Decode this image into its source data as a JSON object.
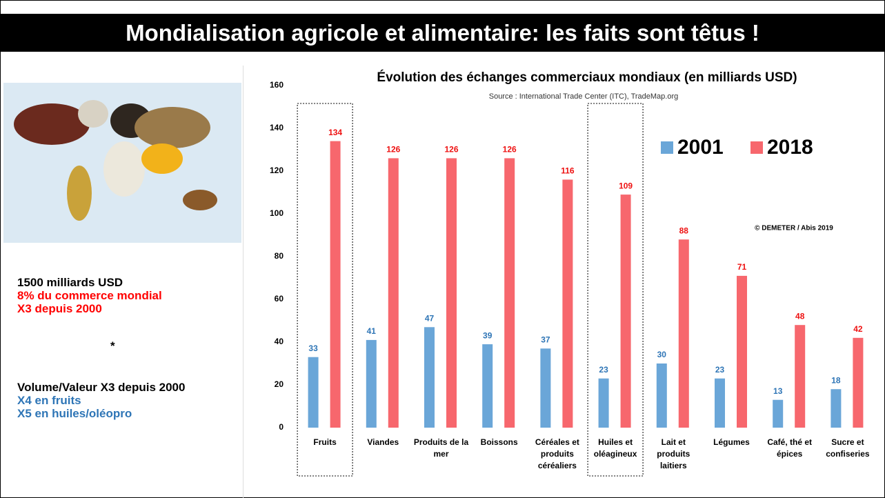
{
  "header": {
    "title": "Mondialisation agricole et alimentaire: les faits sont têtus !"
  },
  "notes": {
    "block1": [
      {
        "text": "1500 milliards USD",
        "color": "#000000"
      },
      {
        "text": "8% du commerce mondial",
        "color": "#ff0000"
      },
      {
        "text": "X3 depuis 2000",
        "color": "#ff0000"
      }
    ],
    "separator": "*",
    "block2": [
      {
        "text": "Volume/Valeur X3 depuis 2000",
        "color": "#000000"
      },
      {
        "text": "X4 en fruits",
        "color": "#2e75b6"
      },
      {
        "text": "X5 en huiles/oléopro",
        "color": "#2e75b6"
      }
    ]
  },
  "chart_data": {
    "type": "bar",
    "title": "Évolution des échanges commerciaux mondiaux (en milliards USD)",
    "subtitle": "Source : International Trade Center (ITC), TradeMap.org",
    "annotation": "© DEMETER / Abis 2019",
    "categories": [
      "Fruits",
      "Viandes",
      "Produits de la mer",
      "Boissons",
      "Céréales et produits céréaliers",
      "Huiles et oléagineux",
      "Lait et produits laitiers",
      "Légumes",
      "Café, thé et épices",
      "Sucre et confiseries"
    ],
    "series": [
      {
        "name": "2001",
        "color": "#6aa6d8",
        "label_color": "#2e75b6",
        "values": [
          33,
          41,
          47,
          39,
          37,
          23,
          30,
          23,
          13,
          18
        ]
      },
      {
        "name": "2018",
        "color": "#f7676d",
        "label_color": "#ee1111",
        "values": [
          134,
          126,
          126,
          126,
          116,
          109,
          88,
          71,
          48,
          42
        ]
      }
    ],
    "ylim": [
      0,
      160
    ],
    "yticks": [
      0,
      20,
      40,
      60,
      80,
      100,
      120,
      140,
      160
    ],
    "grid": false,
    "legend": "upper right"
  }
}
